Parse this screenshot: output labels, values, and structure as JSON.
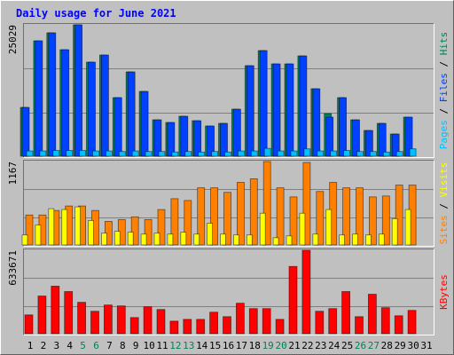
{
  "title": "Daily usage for June 2021",
  "categories": [
    "1",
    "2",
    "3",
    "4",
    "5",
    "6",
    "7",
    "8",
    "9",
    "10",
    "11",
    "12",
    "13",
    "14",
    "15",
    "16",
    "17",
    "18",
    "19",
    "20",
    "21",
    "22",
    "23",
    "24",
    "25",
    "26",
    "27",
    "28",
    "29",
    "30",
    "31"
  ],
  "label_colors": [
    "#000000",
    "#000000",
    "#000000",
    "#000000",
    "#00805c",
    "#00805c",
    "#000000",
    "#000000",
    "#000000",
    "#000000",
    "#000000",
    "#00805c",
    "#00805c",
    "#000000",
    "#000000",
    "#000000",
    "#000000",
    "#000000",
    "#00805c",
    "#00805c",
    "#000000",
    "#000000",
    "#000000",
    "#000000",
    "#000000",
    "#00805c",
    "#00805c",
    "#000000",
    "#000000",
    "#000000",
    "#000000"
  ],
  "separator": " / ",
  "chart_data": [
    {
      "type": "bar",
      "ylim": [
        0,
        25029
      ],
      "yticks": [
        25029
      ],
      "series": [
        {
          "name": "Hits",
          "color": "#00805c",
          "values": [
            9300,
            21985,
            23508,
            20294,
            25029,
            17926,
            19279,
            11162,
            16066,
            12345,
            6934,
            6426,
            7610,
            6765,
            5750,
            6257,
            8963,
            17250,
            20125,
            17588,
            17588,
            19110,
            12853,
            8117,
            11162,
            6934,
            4904,
            6257,
            4228,
            7441,
            null
          ]
        },
        {
          "name": "Files",
          "color": "#0040ff",
          "values": [
            9300,
            21985,
            23508,
            20294,
            25029,
            17926,
            19279,
            11162,
            16066,
            12345,
            6934,
            6426,
            7610,
            6765,
            5750,
            6257,
            8963,
            17250,
            20125,
            17588,
            17588,
            19110,
            12853,
            7441,
            11162,
            6934,
            4904,
            6257,
            4228,
            7441,
            null
          ]
        },
        {
          "name": "Pages",
          "color": "#00c0ff",
          "values": [
            1000,
            1000,
            1100,
            1100,
            1100,
            1000,
            1000,
            900,
            1000,
            900,
            900,
            800,
            900,
            800,
            900,
            800,
            1000,
            1000,
            1500,
            1000,
            1000,
            1400,
            1000,
            1000,
            1100,
            900,
            900,
            800,
            900,
            1400,
            null
          ]
        }
      ]
    },
    {
      "type": "bar",
      "ylim": [
        0,
        1167
      ],
      "yticks": [
        1167
      ],
      "series": [
        {
          "name": "Visits",
          "color": "#ffff00",
          "values": [
            140,
            279,
            507,
            495,
            533,
            342,
            165,
            190,
            178,
            152,
            165,
            152,
            178,
            152,
            304,
            152,
            140,
            140,
            444,
            101,
            127,
            444,
            152,
            495,
            140,
            152,
            140,
            152,
            368,
            495,
            null
          ]
        },
        {
          "name": "Sites",
          "color": "#ff8000",
          "values": [
            419,
            419,
            482,
            545,
            545,
            482,
            330,
            355,
            393,
            355,
            495,
            647,
            622,
            799,
            799,
            736,
            875,
            926,
            1167,
            799,
            672,
            1154,
            748,
            875,
            799,
            799,
            672,
            685,
            837,
            837,
            null
          ]
        }
      ]
    },
    {
      "type": "bar",
      "ylim": [
        0,
        633671
      ],
      "yticks": [
        633671
      ],
      "series": [
        {
          "name": "KBytes",
          "color": "#ff0000",
          "values": [
            143088,
            286178,
            361140,
            320247,
            238482,
            170344,
            218041,
            211227,
            122647,
            204413,
            183972,
            95393,
            109020,
            109020,
            163530,
            129460,
            231668,
            190785,
            190785,
            109020,
            511025,
            633671,
            170344,
            190785,
            320247,
            129460,
            299802,
            197599,
            136274,
            177156,
            null
          ]
        }
      ]
    }
  ]
}
